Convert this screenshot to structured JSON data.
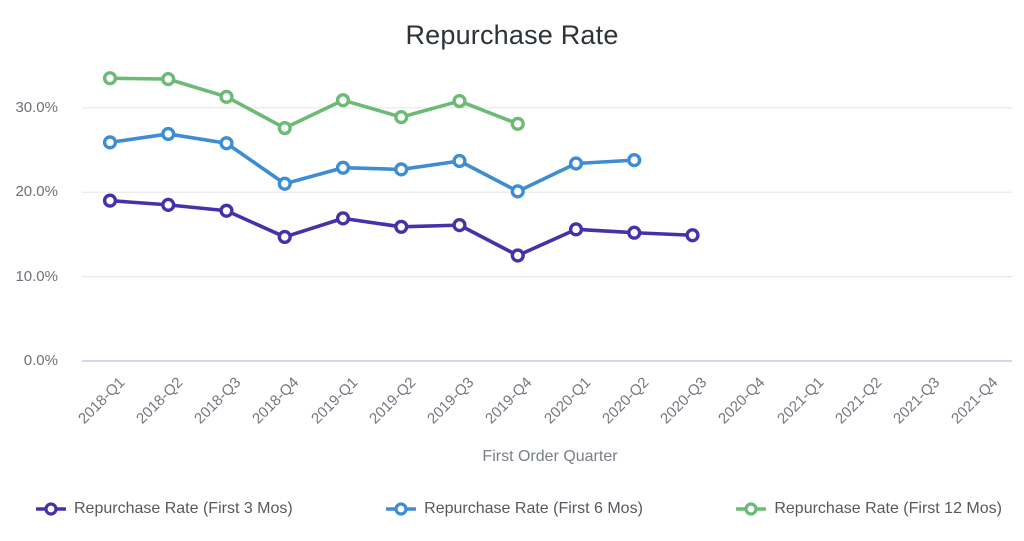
{
  "chart": {
    "title": "Repurchase Rate",
    "xlabel": "First Order Quarter"
  },
  "chart_data": {
    "type": "line",
    "title": "Repurchase Rate",
    "xlabel": "First Order Quarter",
    "ylabel": "",
    "x": [
      "2018-Q1",
      "2018-Q2",
      "2018-Q3",
      "2018-Q4",
      "2019-Q1",
      "2019-Q2",
      "2019-Q3",
      "2019-Q4",
      "2020-Q1",
      "2020-Q2",
      "2020-Q3",
      "2020-Q4",
      "2021-Q1",
      "2021-Q2",
      "2021-Q3",
      "2021-Q4"
    ],
    "series": [
      {
        "name": "Repurchase Rate (First 3 Mos)",
        "color": "#4632a8",
        "values": [
          19.0,
          18.5,
          17.8,
          14.7,
          16.9,
          15.9,
          16.1,
          12.5,
          15.6,
          15.2,
          14.9
        ]
      },
      {
        "name": "Repurchase Rate (First 6 Mos)",
        "color": "#3e8dd3",
        "values": [
          25.9,
          26.9,
          25.8,
          21.0,
          22.9,
          22.7,
          23.7,
          20.1,
          23.4,
          23.8
        ]
      },
      {
        "name": "Repurchase Rate (First 12 Mos)",
        "color": "#6cba74",
        "values": [
          33.5,
          33.4,
          31.3,
          27.6,
          30.9,
          28.9,
          30.8,
          28.1
        ]
      }
    ],
    "y_ticks": [
      "0.0%",
      "10.0%",
      "20.0%",
      "30.0%"
    ],
    "y_tick_values": [
      0,
      10,
      20,
      30
    ],
    "ylim": [
      0,
      35.7
    ],
    "grid": "horizontal",
    "grid_color": "#e7e7e7",
    "baseline_color": "#c3cae2",
    "legend_position": "bottom",
    "marker": "open-circle"
  }
}
